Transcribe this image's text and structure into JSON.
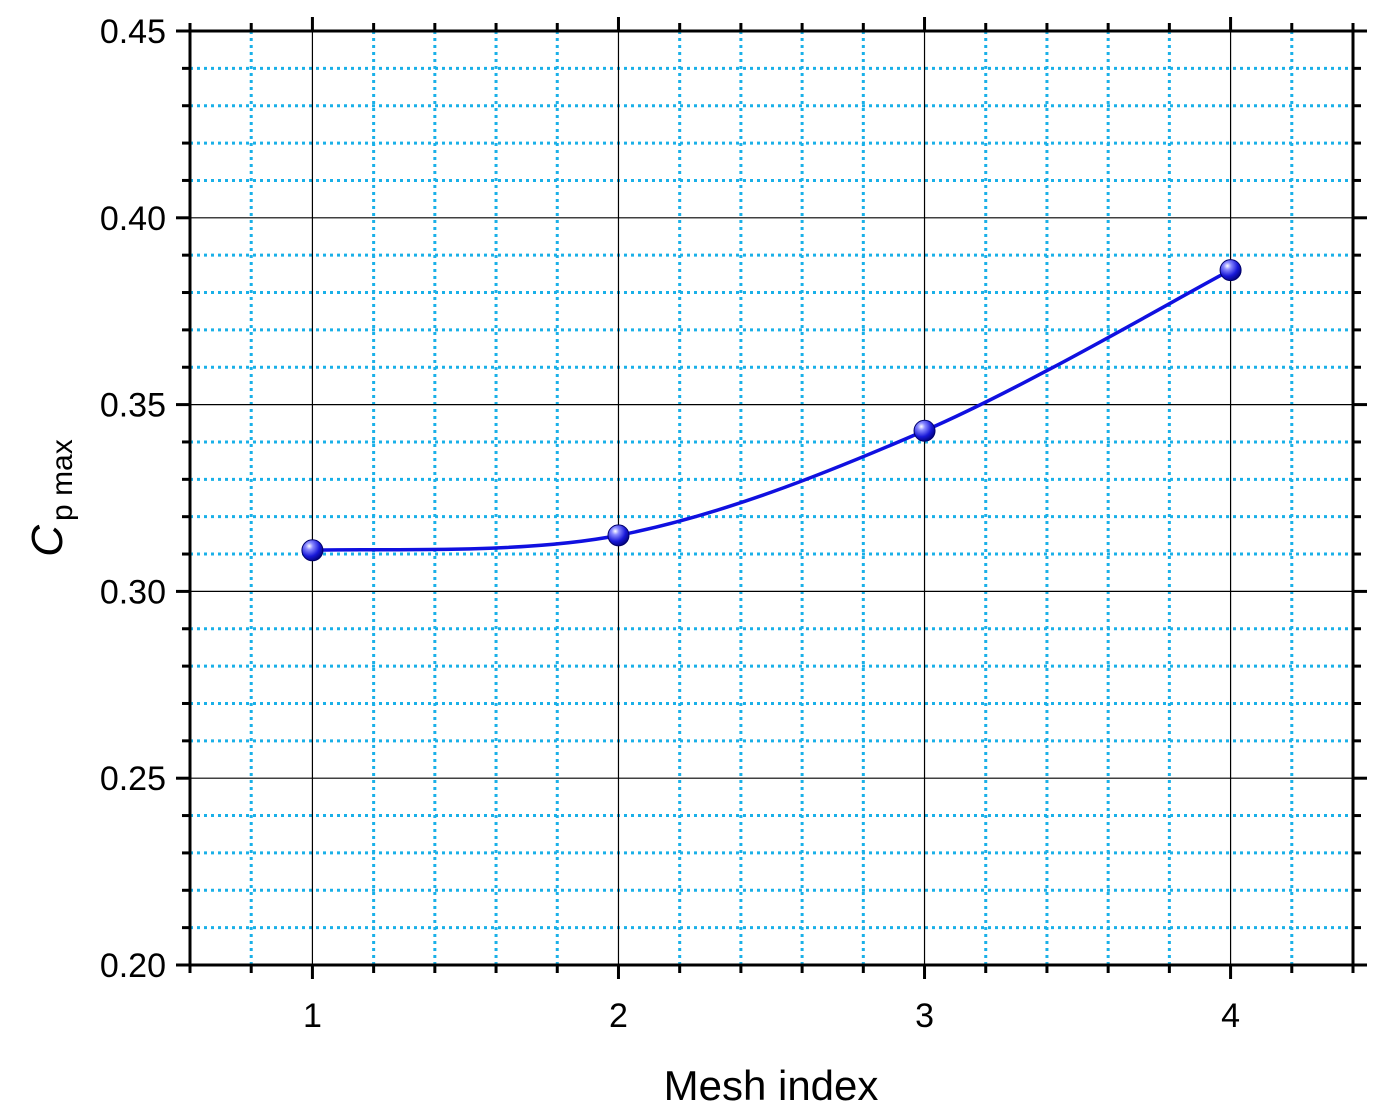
{
  "chart_data": {
    "type": "line",
    "title": "",
    "xlabel": "Mesh  index",
    "ylabel": {
      "main": "C",
      "subscript": "p max"
    },
    "x": [
      1,
      2,
      3,
      4
    ],
    "series": [
      {
        "values": [
          0.311,
          0.315,
          0.343,
          0.386
        ],
        "color": "#1010e0",
        "marker": "circle",
        "smooth": true
      }
    ],
    "xlim": [
      0.6,
      4.4
    ],
    "ylim": [
      0.2,
      0.45
    ],
    "xticks": [
      1,
      2,
      3,
      4
    ],
    "xtick_labels": [
      "1",
      "2",
      "3",
      "4"
    ],
    "yticks": [
      0.2,
      0.25,
      0.3,
      0.35,
      0.4,
      0.45
    ],
    "ytick_labels": [
      "0.20",
      "0.25",
      "0.30",
      "0.35",
      "0.40",
      "0.45"
    ],
    "x_minor_step": 0.2,
    "y_minor_step": 0.01,
    "grid": {
      "major": true,
      "minor": true,
      "major_color": "#000000",
      "minor_color": "#1ab0e8"
    },
    "legend": "none"
  }
}
